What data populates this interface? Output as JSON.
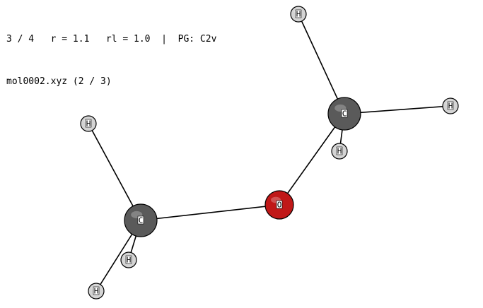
{
  "status": {
    "line1": "3 / 4   r = 1.1   rl = 1.0  |  PG: C2v",
    "line2": "mol0002.xyz (2 / 3)"
  },
  "molecule": {
    "atoms": [
      {
        "id": "C1",
        "label": "C",
        "element": "C",
        "color": "#5a5a5a"
      },
      {
        "id": "C2",
        "label": "C",
        "element": "C",
        "color": "#5a5a5a"
      },
      {
        "id": "O1",
        "label": "O",
        "element": "O",
        "color": "#c01818"
      },
      {
        "id": "H1",
        "label": "H",
        "element": "H",
        "color": "#d4d4d4"
      },
      {
        "id": "H2",
        "label": "H",
        "element": "H",
        "color": "#d4d4d4"
      },
      {
        "id": "H3",
        "label": "H",
        "element": "H",
        "color": "#d4d4d4"
      },
      {
        "id": "H4",
        "label": "H",
        "element": "H",
        "color": "#d4d4d4"
      },
      {
        "id": "H5",
        "label": "H",
        "element": "H",
        "color": "#d4d4d4"
      },
      {
        "id": "H6",
        "label": "H",
        "element": "H",
        "color": "#d4d4d4"
      }
    ],
    "bonds": [
      [
        "C1",
        "O1"
      ],
      [
        "O1",
        "C2"
      ],
      [
        "C1",
        "H1"
      ],
      [
        "C1",
        "H2"
      ],
      [
        "C1",
        "H3"
      ],
      [
        "C2",
        "H4"
      ],
      [
        "C2",
        "H5"
      ],
      [
        "C2",
        "H6"
      ]
    ]
  }
}
